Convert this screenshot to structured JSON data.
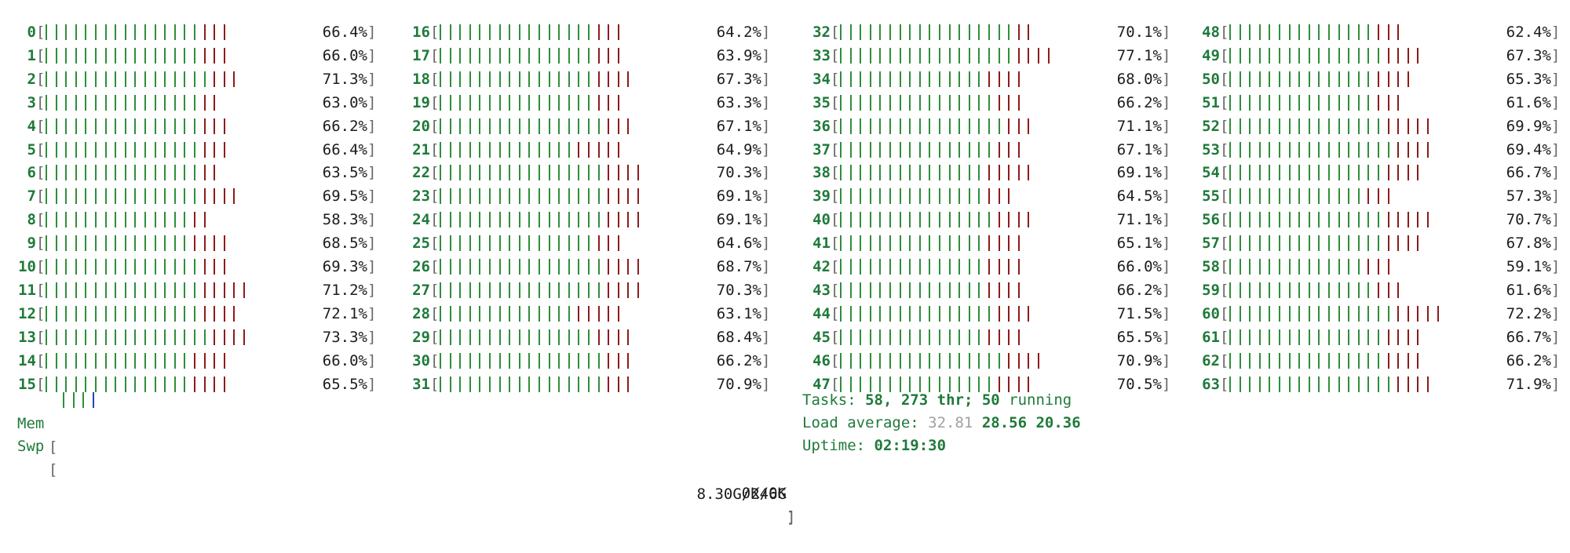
{
  "cpus": [
    {
      "id": "0",
      "pct": "66.4%",
      "g": 16,
      "r": 3
    },
    {
      "id": "1",
      "pct": "66.0%",
      "g": 16,
      "r": 3
    },
    {
      "id": "2",
      "pct": "71.3%",
      "g": 17,
      "r": 3
    },
    {
      "id": "3",
      "pct": "63.0%",
      "g": 16,
      "r": 2
    },
    {
      "id": "4",
      "pct": "66.2%",
      "g": 16,
      "r": 3
    },
    {
      "id": "5",
      "pct": "66.4%",
      "g": 16,
      "r": 3
    },
    {
      "id": "6",
      "pct": "63.5%",
      "g": 16,
      "r": 2
    },
    {
      "id": "7",
      "pct": "69.5%",
      "g": 16,
      "r": 4
    },
    {
      "id": "8",
      "pct": "58.3%",
      "g": 15,
      "r": 2
    },
    {
      "id": "9",
      "pct": "68.5%",
      "g": 15,
      "r": 4
    },
    {
      "id": "10",
      "pct": "69.3%",
      "g": 16,
      "r": 3
    },
    {
      "id": "11",
      "pct": "71.2%",
      "g": 16,
      "r": 5
    },
    {
      "id": "12",
      "pct": "72.1%",
      "g": 16,
      "r": 4
    },
    {
      "id": "13",
      "pct": "73.3%",
      "g": 17,
      "r": 4
    },
    {
      "id": "14",
      "pct": "66.0%",
      "g": 15,
      "r": 4
    },
    {
      "id": "15",
      "pct": "65.5%",
      "g": 15,
      "r": 4
    },
    {
      "id": "16",
      "pct": "64.2%",
      "g": 16,
      "r": 3
    },
    {
      "id": "17",
      "pct": "63.9%",
      "g": 16,
      "r": 3
    },
    {
      "id": "18",
      "pct": "67.3%",
      "g": 16,
      "r": 4
    },
    {
      "id": "19",
      "pct": "63.3%",
      "g": 16,
      "r": 3
    },
    {
      "id": "20",
      "pct": "67.1%",
      "g": 17,
      "r": 3
    },
    {
      "id": "21",
      "pct": "64.9%",
      "g": 14,
      "r": 5
    },
    {
      "id": "22",
      "pct": "70.3%",
      "g": 17,
      "r": 4
    },
    {
      "id": "23",
      "pct": "69.1%",
      "g": 17,
      "r": 4
    },
    {
      "id": "24",
      "pct": "69.1%",
      "g": 17,
      "r": 4
    },
    {
      "id": "25",
      "pct": "64.6%",
      "g": 16,
      "r": 3
    },
    {
      "id": "26",
      "pct": "68.7%",
      "g": 17,
      "r": 4
    },
    {
      "id": "27",
      "pct": "70.3%",
      "g": 17,
      "r": 4
    },
    {
      "id": "28",
      "pct": "63.1%",
      "g": 14,
      "r": 5
    },
    {
      "id": "29",
      "pct": "68.4%",
      "g": 16,
      "r": 4
    },
    {
      "id": "30",
      "pct": "66.2%",
      "g": 17,
      "r": 3
    },
    {
      "id": "31",
      "pct": "70.9%",
      "g": 17,
      "r": 3
    },
    {
      "id": "32",
      "pct": "70.1%",
      "g": 18,
      "r": 2
    },
    {
      "id": "33",
      "pct": "77.1%",
      "g": 18,
      "r": 4
    },
    {
      "id": "34",
      "pct": "68.0%",
      "g": 15,
      "r": 4
    },
    {
      "id": "35",
      "pct": "66.2%",
      "g": 16,
      "r": 3
    },
    {
      "id": "36",
      "pct": "71.1%",
      "g": 17,
      "r": 3
    },
    {
      "id": "37",
      "pct": "67.1%",
      "g": 16,
      "r": 3
    },
    {
      "id": "38",
      "pct": "69.1%",
      "g": 15,
      "r": 5
    },
    {
      "id": "39",
      "pct": "64.5%",
      "g": 15,
      "r": 3
    },
    {
      "id": "40",
      "pct": "71.1%",
      "g": 16,
      "r": 4
    },
    {
      "id": "41",
      "pct": "65.1%",
      "g": 15,
      "r": 4
    },
    {
      "id": "42",
      "pct": "66.0%",
      "g": 15,
      "r": 4
    },
    {
      "id": "43",
      "pct": "66.2%",
      "g": 15,
      "r": 4
    },
    {
      "id": "44",
      "pct": "71.5%",
      "g": 16,
      "r": 4
    },
    {
      "id": "45",
      "pct": "65.5%",
      "g": 15,
      "r": 4
    },
    {
      "id": "46",
      "pct": "70.9%",
      "g": 17,
      "r": 4
    },
    {
      "id": "47",
      "pct": "70.5%",
      "g": 16,
      "r": 4
    },
    {
      "id": "48",
      "pct": "62.4%",
      "g": 15,
      "r": 3
    },
    {
      "id": "49",
      "pct": "67.3%",
      "g": 16,
      "r": 4
    },
    {
      "id": "50",
      "pct": "65.3%",
      "g": 15,
      "r": 4
    },
    {
      "id": "51",
      "pct": "61.6%",
      "g": 15,
      "r": 3
    },
    {
      "id": "52",
      "pct": "69.9%",
      "g": 16,
      "r": 5
    },
    {
      "id": "53",
      "pct": "69.4%",
      "g": 17,
      "r": 4
    },
    {
      "id": "54",
      "pct": "66.7%",
      "g": 16,
      "r": 4
    },
    {
      "id": "55",
      "pct": "57.3%",
      "g": 14,
      "r": 3
    },
    {
      "id": "56",
      "pct": "70.7%",
      "g": 16,
      "r": 5
    },
    {
      "id": "57",
      "pct": "67.8%",
      "g": 16,
      "r": 4
    },
    {
      "id": "58",
      "pct": "59.1%",
      "g": 14,
      "r": 3
    },
    {
      "id": "59",
      "pct": "61.6%",
      "g": 15,
      "r": 3
    },
    {
      "id": "60",
      "pct": "72.2%",
      "g": 17,
      "r": 5
    },
    {
      "id": "61",
      "pct": "66.7%",
      "g": 16,
      "r": 4
    },
    {
      "id": "62",
      "pct": "66.2%",
      "g": 16,
      "r": 4
    },
    {
      "id": "63",
      "pct": "71.9%",
      "g": 17,
      "r": 4
    }
  ],
  "mem": {
    "label": "Mem",
    "value": "8.30G/246G",
    "green": 3,
    "blue": 1
  },
  "swp": {
    "label": "Swp",
    "value": "0K/0K"
  },
  "tasks": {
    "label": "Tasks: ",
    "count": "58",
    "sep1": ", ",
    "threads": "273",
    "thr_label": " thr; ",
    "running": "50",
    "running_label": " running"
  },
  "load": {
    "label": "Load average: ",
    "l1": "32.81",
    "l5": "28.56",
    "l15": "20.36"
  },
  "uptime": {
    "label": "Uptime: ",
    "value": "02:19:30"
  },
  "colors": {
    "green": "#2f8f3a",
    "red": "#8e1b1b",
    "blue": "#2444b0",
    "label_green": "#1f7a3a"
  }
}
